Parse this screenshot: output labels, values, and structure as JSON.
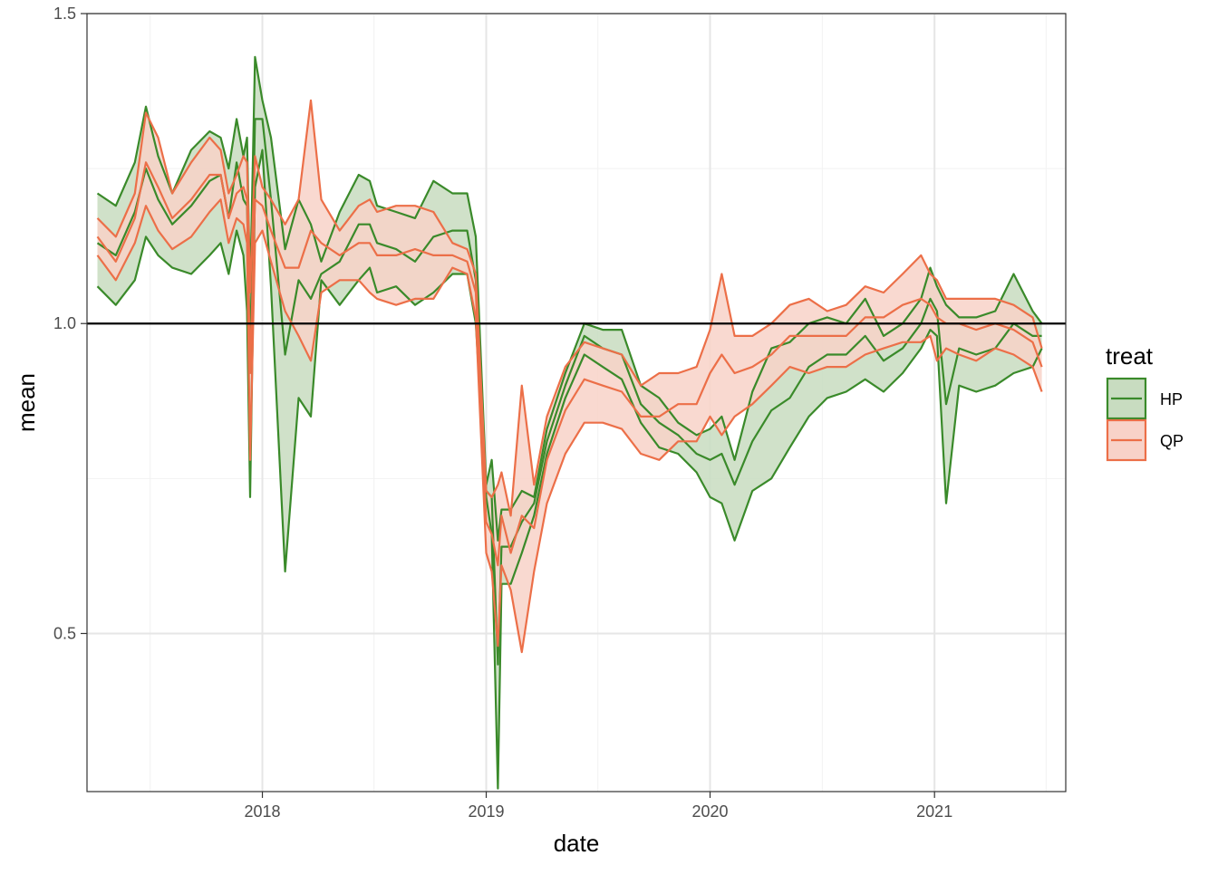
{
  "chart_data": {
    "type": "area",
    "xlabel": "date",
    "ylabel": "mean",
    "x_ticks": [
      "2018",
      "2019",
      "2020",
      "2021"
    ],
    "y_ticks": [
      "0.5",
      "1.0",
      "1.5"
    ],
    "ylim": [
      0.245,
      1.5
    ],
    "xlim": [
      "2017-03-21",
      "2021-08-03"
    ],
    "grid": true,
    "reference_line": {
      "y": 1.0,
      "color": "#000000"
    },
    "legend": {
      "title": "treat",
      "position": "right"
    },
    "series": [
      {
        "name": "HP",
        "line_color": "#3a8a2a",
        "fill_color": "#c8dcc0",
        "x": [
          "2017-04-07",
          "2017-05-07",
          "2017-06-07",
          "2017-06-25",
          "2017-07-15",
          "2017-08-07",
          "2017-09-07",
          "2017-10-07",
          "2017-10-25",
          "2017-11-07",
          "2017-11-20",
          "2017-12-01",
          "2017-12-07",
          "2017-12-12",
          "2017-12-20",
          "2018-01-01",
          "2018-01-15",
          "2018-02-07",
          "2018-03-01",
          "2018-03-21",
          "2018-04-07",
          "2018-05-07",
          "2018-06-07",
          "2018-06-25",
          "2018-07-07",
          "2018-08-07",
          "2018-09-07",
          "2018-10-07",
          "2018-11-07",
          "2018-12-01",
          "2018-12-15",
          "2019-01-01",
          "2019-01-10",
          "2019-01-20",
          "2019-01-26",
          "2019-02-10",
          "2019-02-28",
          "2019-03-20",
          "2019-04-10",
          "2019-05-10",
          "2019-06-10",
          "2019-07-10",
          "2019-08-10",
          "2019-09-10",
          "2019-10-10",
          "2019-11-10",
          "2019-12-10",
          "2020-01-01",
          "2020-01-20",
          "2020-02-10",
          "2020-03-10",
          "2020-04-10",
          "2020-05-10",
          "2020-06-10",
          "2020-07-10",
          "2020-08-10",
          "2020-09-10",
          "2020-10-10",
          "2020-11-10",
          "2020-12-10",
          "2020-12-25",
          "2021-01-05",
          "2021-01-20",
          "2021-02-10",
          "2021-03-10",
          "2021-04-10",
          "2021-05-10",
          "2021-06-10",
          "2021-06-25"
        ],
        "upper": [
          1.21,
          1.19,
          1.26,
          1.35,
          1.27,
          1.21,
          1.28,
          1.31,
          1.3,
          1.25,
          1.33,
          1.27,
          1.3,
          1.05,
          1.43,
          1.36,
          1.3,
          1.12,
          1.2,
          1.16,
          1.1,
          1.18,
          1.24,
          1.23,
          1.19,
          1.18,
          1.17,
          1.23,
          1.21,
          1.21,
          1.14,
          0.74,
          0.78,
          0.65,
          0.7,
          0.7,
          0.73,
          0.72,
          0.83,
          0.92,
          1.0,
          0.99,
          0.99,
          0.9,
          0.88,
          0.84,
          0.82,
          0.83,
          0.85,
          0.78,
          0.89,
          0.96,
          0.97,
          1.0,
          1.01,
          1.0,
          1.04,
          0.98,
          1.0,
          1.04,
          1.09,
          1.06,
          1.03,
          1.01,
          1.01,
          1.02,
          1.08,
          1.02,
          1.0
        ],
        "lower": [
          1.06,
          1.03,
          1.07,
          1.14,
          1.11,
          1.09,
          1.08,
          1.11,
          1.13,
          1.08,
          1.15,
          1.11,
          1.02,
          0.72,
          1.22,
          1.28,
          1.06,
          0.6,
          0.88,
          0.85,
          1.07,
          1.03,
          1.07,
          1.09,
          1.05,
          1.06,
          1.03,
          1.05,
          1.08,
          1.08,
          1.0,
          0.72,
          0.66,
          0.25,
          0.58,
          0.58,
          0.63,
          0.69,
          0.79,
          0.88,
          0.95,
          0.93,
          0.91,
          0.84,
          0.8,
          0.79,
          0.76,
          0.72,
          0.71,
          0.65,
          0.73,
          0.75,
          0.8,
          0.85,
          0.88,
          0.89,
          0.91,
          0.89,
          0.92,
          0.96,
          0.99,
          0.98,
          0.71,
          0.9,
          0.89,
          0.9,
          0.92,
          0.93,
          0.96
        ],
        "mean": [
          1.13,
          1.11,
          1.18,
          1.25,
          1.2,
          1.16,
          1.19,
          1.23,
          1.24,
          1.17,
          1.26,
          1.2,
          1.19,
          0.95,
          1.33,
          1.33,
          1.2,
          0.95,
          1.07,
          1.04,
          1.08,
          1.1,
          1.16,
          1.16,
          1.13,
          1.12,
          1.1,
          1.14,
          1.15,
          1.15,
          1.07,
          0.73,
          0.72,
          0.45,
          0.64,
          0.64,
          0.68,
          0.71,
          0.81,
          0.9,
          0.98,
          0.96,
          0.95,
          0.87,
          0.84,
          0.82,
          0.79,
          0.78,
          0.79,
          0.74,
          0.81,
          0.86,
          0.88,
          0.93,
          0.95,
          0.95,
          0.98,
          0.94,
          0.96,
          1.0,
          1.04,
          1.02,
          0.87,
          0.96,
          0.95,
          0.96,
          1.0,
          0.98,
          0.98
        ]
      },
      {
        "name": "QP",
        "line_color": "#ec6f48",
        "fill_color": "#f8d2c8",
        "x": [
          "2017-04-07",
          "2017-05-07",
          "2017-06-07",
          "2017-06-25",
          "2017-07-15",
          "2017-08-07",
          "2017-09-07",
          "2017-10-07",
          "2017-10-25",
          "2017-11-07",
          "2017-11-20",
          "2017-12-01",
          "2017-12-07",
          "2017-12-12",
          "2017-12-20",
          "2018-01-01",
          "2018-01-15",
          "2018-02-07",
          "2018-03-01",
          "2018-03-21",
          "2018-04-07",
          "2018-05-07",
          "2018-06-07",
          "2018-06-25",
          "2018-07-07",
          "2018-08-07",
          "2018-09-07",
          "2018-10-07",
          "2018-11-07",
          "2018-12-01",
          "2018-12-15",
          "2019-01-01",
          "2019-01-10",
          "2019-01-20",
          "2019-01-26",
          "2019-02-10",
          "2019-02-28",
          "2019-03-20",
          "2019-04-10",
          "2019-05-10",
          "2019-06-10",
          "2019-07-10",
          "2019-08-10",
          "2019-09-10",
          "2019-10-10",
          "2019-11-10",
          "2019-12-10",
          "2020-01-01",
          "2020-01-20",
          "2020-02-10",
          "2020-03-10",
          "2020-04-10",
          "2020-05-10",
          "2020-06-10",
          "2020-07-10",
          "2020-08-10",
          "2020-09-10",
          "2020-10-10",
          "2020-11-10",
          "2020-12-10",
          "2020-12-25",
          "2021-01-05",
          "2021-01-20",
          "2021-02-10",
          "2021-03-10",
          "2021-04-10",
          "2021-05-10",
          "2021-06-10",
          "2021-06-25"
        ],
        "upper": [
          1.17,
          1.14,
          1.21,
          1.34,
          1.3,
          1.21,
          1.26,
          1.3,
          1.28,
          1.21,
          1.24,
          1.27,
          1.26,
          1.05,
          1.27,
          1.22,
          1.2,
          1.16,
          1.2,
          1.36,
          1.2,
          1.15,
          1.19,
          1.2,
          1.18,
          1.19,
          1.19,
          1.18,
          1.13,
          1.12,
          1.08,
          0.73,
          0.72,
          0.74,
          0.76,
          0.69,
          0.9,
          0.74,
          0.85,
          0.93,
          0.97,
          0.96,
          0.95,
          0.9,
          0.92,
          0.92,
          0.93,
          0.99,
          1.08,
          0.98,
          0.98,
          1.0,
          1.03,
          1.04,
          1.02,
          1.03,
          1.06,
          1.05,
          1.08,
          1.11,
          1.08,
          1.07,
          1.04,
          1.04,
          1.04,
          1.04,
          1.03,
          1.01,
          0.96
        ],
        "lower": [
          1.11,
          1.07,
          1.13,
          1.19,
          1.15,
          1.12,
          1.14,
          1.18,
          1.2,
          1.13,
          1.17,
          1.16,
          1.13,
          0.78,
          1.13,
          1.15,
          1.1,
          1.02,
          0.98,
          0.94,
          1.05,
          1.07,
          1.07,
          1.05,
          1.04,
          1.03,
          1.04,
          1.04,
          1.09,
          1.08,
          1.01,
          0.63,
          0.6,
          0.48,
          0.61,
          0.57,
          0.47,
          0.6,
          0.71,
          0.79,
          0.84,
          0.84,
          0.83,
          0.79,
          0.78,
          0.81,
          0.81,
          0.85,
          0.82,
          0.85,
          0.87,
          0.9,
          0.93,
          0.92,
          0.93,
          0.93,
          0.95,
          0.96,
          0.97,
          0.97,
          0.98,
          0.94,
          0.96,
          0.95,
          0.94,
          0.96,
          0.95,
          0.93,
          0.89
        ],
        "mean": [
          1.14,
          1.1,
          1.17,
          1.26,
          1.22,
          1.17,
          1.2,
          1.24,
          1.24,
          1.17,
          1.21,
          1.22,
          1.2,
          0.92,
          1.2,
          1.19,
          1.15,
          1.09,
          1.09,
          1.15,
          1.13,
          1.11,
          1.13,
          1.13,
          1.11,
          1.11,
          1.12,
          1.11,
          1.11,
          1.1,
          1.05,
          0.68,
          0.66,
          0.61,
          0.69,
          0.63,
          0.69,
          0.67,
          0.78,
          0.86,
          0.91,
          0.9,
          0.89,
          0.85,
          0.85,
          0.87,
          0.87,
          0.92,
          0.95,
          0.92,
          0.93,
          0.95,
          0.98,
          0.98,
          0.98,
          0.98,
          1.01,
          1.01,
          1.03,
          1.04,
          1.03,
          1.01,
          1.0,
          1.0,
          0.99,
          1.0,
          0.99,
          0.97,
          0.93
        ]
      }
    ]
  }
}
